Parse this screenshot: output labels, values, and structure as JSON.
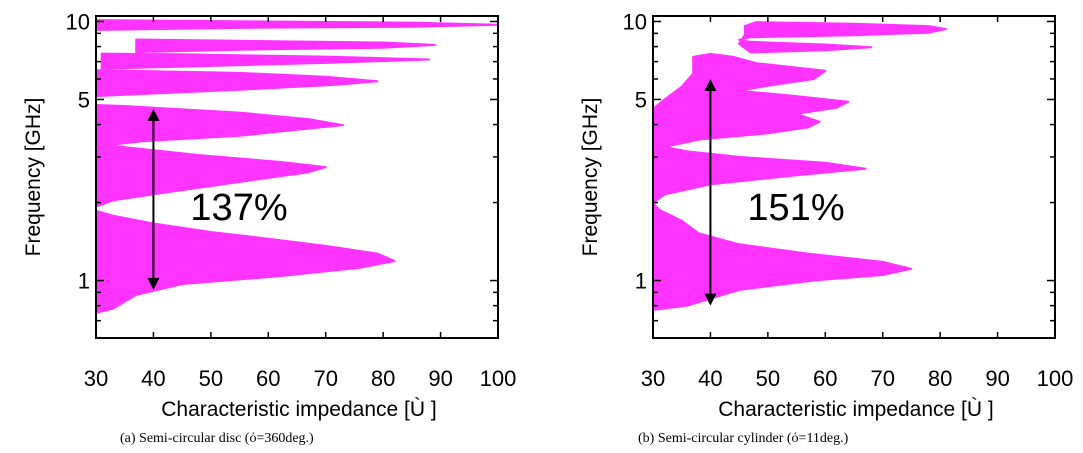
{
  "chart_data": [
    {
      "type": "area",
      "xlabel": "Characteristic impedance [Ù ]",
      "ylabel": "Frequency [GHz]",
      "xlim": [
        30,
        100
      ],
      "ylim": [
        0.6,
        10.5
      ],
      "y_scale": "log",
      "xticks": [
        30,
        40,
        50,
        60,
        70,
        80,
        90,
        100
      ],
      "yticks": [
        1,
        5,
        10
      ],
      "grid": false,
      "fill_color": "#ff33ff",
      "caption": "(a) Semi-circular disc (ό=360deg.)",
      "annotation": {
        "text": "137%",
        "arrow_x": 40,
        "arrow_y_from": 0.92,
        "arrow_y_to": 4.6
      },
      "series": [
        {
          "points": [
            [
              30,
              0.75
            ],
            [
              33,
              0.78
            ],
            [
              37,
              0.88
            ],
            [
              45,
              0.97
            ],
            [
              62,
              1.04
            ],
            [
              76,
              1.12
            ],
            [
              82,
              1.19
            ],
            [
              79,
              1.27
            ],
            [
              70,
              1.36
            ],
            [
              60,
              1.45
            ],
            [
              50,
              1.54
            ],
            [
              40,
              1.66
            ],
            [
              33,
              1.78
            ],
            [
              30,
              1.86
            ]
          ]
        },
        {
          "points": [
            [
              30,
              1.93
            ],
            [
              33,
              2.04
            ],
            [
              43,
              2.2
            ],
            [
              56,
              2.42
            ],
            [
              67,
              2.62
            ],
            [
              70,
              2.74
            ],
            [
              62,
              2.87
            ],
            [
              48,
              3.05
            ],
            [
              38,
              3.22
            ],
            [
              32,
              3.33
            ],
            [
              38,
              3.45
            ],
            [
              55,
              3.62
            ],
            [
              65,
              3.82
            ],
            [
              73,
              3.98
            ],
            [
              67,
              4.2
            ],
            [
              55,
              4.45
            ],
            [
              42,
              4.62
            ],
            [
              35,
              4.72
            ],
            [
              30,
              4.76
            ]
          ]
        },
        {
          "points": [
            [
              30,
              5.15
            ],
            [
              38,
              5.25
            ],
            [
              55,
              5.45
            ],
            [
              72,
              5.7
            ],
            [
              79,
              5.88
            ],
            [
              70,
              6.12
            ],
            [
              55,
              6.33
            ],
            [
              40,
              6.43
            ],
            [
              30,
              6.48
            ]
          ]
        },
        {
          "points": [
            [
              31,
              6.58
            ],
            [
              46,
              6.7
            ],
            [
              70,
              6.92
            ],
            [
              88,
              7.13
            ],
            [
              70,
              7.32
            ],
            [
              45,
              7.47
            ],
            [
              31,
              7.52
            ]
          ]
        },
        {
          "points": [
            [
              37,
              7.62
            ],
            [
              55,
              7.78
            ],
            [
              80,
              7.92
            ],
            [
              89,
              8.12
            ],
            [
              80,
              8.3
            ],
            [
              55,
              8.42
            ],
            [
              37,
              8.52
            ]
          ]
        },
        {
          "points": [
            [
              30,
              9.28
            ],
            [
              55,
              9.45
            ],
            [
              85,
              9.55
            ],
            [
              100,
              9.72
            ],
            [
              85,
              9.9
            ],
            [
              55,
              10.02
            ],
            [
              30,
              10.12
            ]
          ]
        }
      ]
    },
    {
      "type": "area",
      "xlabel": "Characteristic impedance [Ù ]",
      "ylabel": "Frequency [GHz]",
      "xlim": [
        30,
        100
      ],
      "ylim": [
        0.6,
        10.5
      ],
      "y_scale": "log",
      "xticks": [
        30,
        40,
        50,
        60,
        70,
        80,
        90,
        100
      ],
      "yticks": [
        1,
        5,
        10
      ],
      "grid": false,
      "fill_color": "#ff33ff",
      "caption": "(b) Semi-circular cylinder (ό=11deg.)",
      "annotation": {
        "text": "151%",
        "arrow_x": 40,
        "arrow_y_from": 0.8,
        "arrow_y_to": 6.0
      },
      "series": [
        {
          "points": [
            [
              30,
              0.77
            ],
            [
              36,
              0.8
            ],
            [
              45,
              0.92
            ],
            [
              58,
              1.0
            ],
            [
              70,
              1.05
            ],
            [
              75,
              1.11
            ],
            [
              70,
              1.18
            ],
            [
              57,
              1.27
            ],
            [
              45,
              1.38
            ],
            [
              38,
              1.52
            ],
            [
              35,
              1.7
            ],
            [
              31,
              1.88
            ],
            [
              30,
              2.0
            ],
            [
              32,
              2.15
            ],
            [
              40,
              2.35
            ],
            [
              55,
              2.55
            ],
            [
              67,
              2.7
            ],
            [
              60,
              2.85
            ],
            [
              45,
              3.0
            ],
            [
              36,
              3.15
            ],
            [
              32,
              3.28
            ],
            [
              38,
              3.5
            ],
            [
              50,
              3.7
            ],
            [
              57,
              3.9
            ],
            [
              59,
              4.1
            ],
            [
              55,
              4.4
            ],
            [
              62,
              4.65
            ],
            [
              64,
              4.9
            ],
            [
              55,
              5.15
            ],
            [
              45,
              5.4
            ],
            [
              50,
              5.65
            ],
            [
              58,
              6.0
            ],
            [
              60,
              6.45
            ],
            [
              48,
              6.9
            ],
            [
              44,
              7.3
            ],
            [
              40,
              7.5
            ],
            [
              37,
              7.3
            ],
            [
              37,
              6.3
            ],
            [
              35,
              5.6
            ],
            [
              32,
              5.0
            ],
            [
              30,
              4.6
            ]
          ]
        },
        {
          "points": [
            [
              47,
              7.6
            ],
            [
              60,
              7.75
            ],
            [
              68,
              7.95
            ],
            [
              60,
              8.15
            ],
            [
              47,
              8.35
            ],
            [
              45,
              8.5
            ],
            [
              47,
              8.7
            ],
            [
              65,
              8.85
            ],
            [
              78,
              9.05
            ],
            [
              81,
              9.35
            ],
            [
              78,
              9.6
            ],
            [
              65,
              9.8
            ],
            [
              48,
              9.95
            ],
            [
              46,
              9.6
            ],
            [
              46,
              8.9
            ],
            [
              45,
              8.2
            ]
          ]
        }
      ]
    }
  ]
}
